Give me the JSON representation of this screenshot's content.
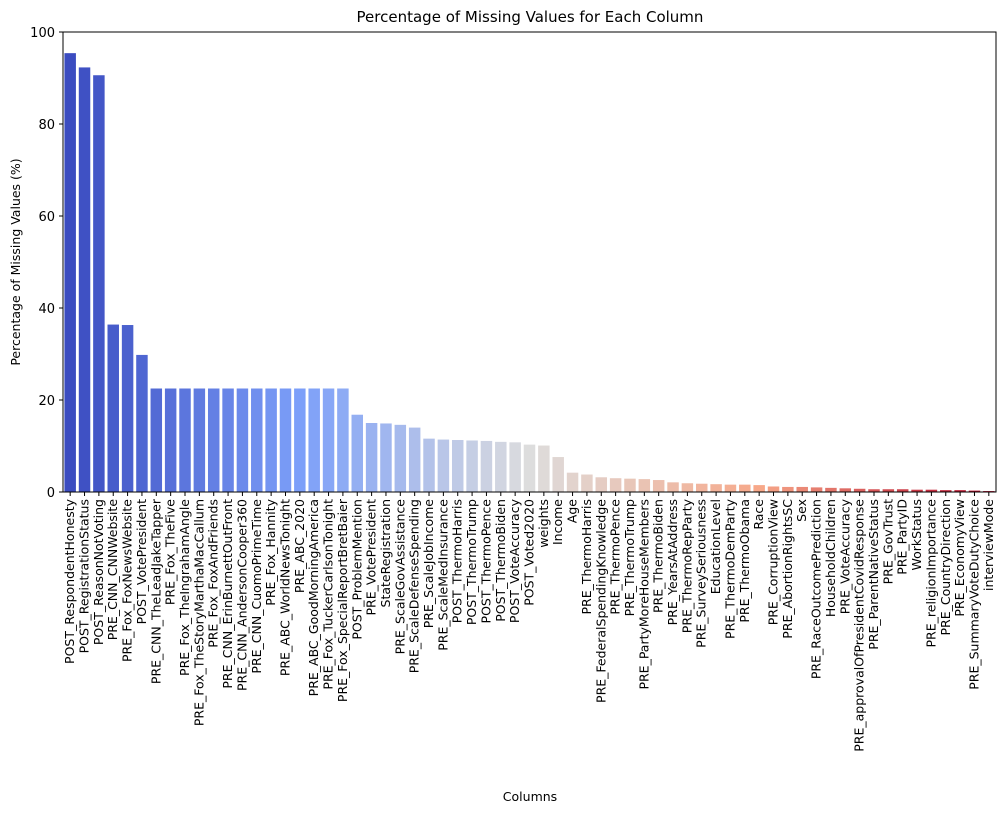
{
  "chart_data": {
    "type": "bar",
    "title": "Percentage of Missing Values for Each Column",
    "xlabel": "Columns",
    "ylabel": "Percentage of Missing Values (%)",
    "ylim": [
      0,
      100
    ],
    "yticks": [
      0,
      20,
      40,
      60,
      80,
      100
    ],
    "grid": false,
    "palette": "coolwarm",
    "categories": [
      "POST_RespondentHonesty",
      "POST_RegistrationStatus",
      "POST_ReasonNotVoting",
      "PRE_CNN_CNNWebsite",
      "PRE_Fox_FoxNewsWebsite",
      "POST_VotePresident",
      "PRE_CNN_TheLeadJakeTapper",
      "PRE_Fox_TheFive",
      "PRE_Fox_TheIngrahamAngle",
      "PRE_Fox_TheStoryMarthaMacCallum",
      "PRE_Fox_FoxAndFriends",
      "PRE_CNN_ErinBurnettOutFront",
      "PRE_CNN_AndersonCooper360",
      "PRE_CNN_CuomoPrimeTime",
      "PRE_Fox_Hannity",
      "PRE_ABC_WorldNewsTonight",
      "PRE_ABC_2020",
      "PRE_ABC_GoodMorningAmerica",
      "PRE_Fox_TuckerCarlsonTonight",
      "PRE_Fox_SpecialReportBretBaier",
      "POST_ProblemMention",
      "PRE_VotePresident",
      "StateRegistration",
      "PRE_ScaleGovAssistance",
      "PRE_ScaleDefenseSpending",
      "PRE_ScaleJobIncome",
      "PRE_ScaleMedInsurance",
      "POST_ThermoHarris",
      "POST_ThermoTrump",
      "POST_ThermoPence",
      "POST_ThermoBiden",
      "POST_VoteAccuracy",
      "POST_Voted2020",
      "weights",
      "Income",
      "Age",
      "PRE_ThermoHarris",
      "PRE_FederalSpendingKnowledge",
      "PRE_ThermoPence",
      "PRE_ThermoTrump",
      "PRE_PartyMoreHouseMembers",
      "PRE_ThermoBiden",
      "PRE_YearsAtAddress",
      "PRE_ThermoRepParty",
      "PRE_SurveySeriousness",
      "EducationLevel",
      "PRE_ThermoDemParty",
      "PRE_ThermoObama",
      "Race",
      "PRE_CorruptionView",
      "PRE_AbortionRightsSC",
      "Sex",
      "PRE_RaceOutcomePrediction",
      "HouseholdChildren",
      "PRE_VoteAccuracy",
      "PRE_approvalOfPresidentCovidResponse",
      "PRE_ParentNativeStatus",
      "PRE_GovTrust",
      "PRE_PartyID",
      "WorkStatus",
      "PRE_religionImportance",
      "PRE_CountryDirection",
      "PRE_EconomyView",
      "PRE_SummaryVoteDutyChoice",
      "interviewMode"
    ],
    "values": [
      95.4,
      92.3,
      90.6,
      36.4,
      36.3,
      29.8,
      22.5,
      22.5,
      22.5,
      22.5,
      22.5,
      22.5,
      22.5,
      22.5,
      22.5,
      22.5,
      22.5,
      22.5,
      22.5,
      22.5,
      16.8,
      15.0,
      14.9,
      14.6,
      14.0,
      11.6,
      11.4,
      11.3,
      11.2,
      11.1,
      10.9,
      10.8,
      10.3,
      10.1,
      7.6,
      4.2,
      3.8,
      3.2,
      3.0,
      2.9,
      2.8,
      2.6,
      2.1,
      1.9,
      1.8,
      1.7,
      1.6,
      1.6,
      1.5,
      1.2,
      1.1,
      1.1,
      1.0,
      0.9,
      0.8,
      0.7,
      0.6,
      0.6,
      0.6,
      0.5,
      0.5,
      0.4,
      0.4,
      0.3,
      0.2
    ]
  }
}
